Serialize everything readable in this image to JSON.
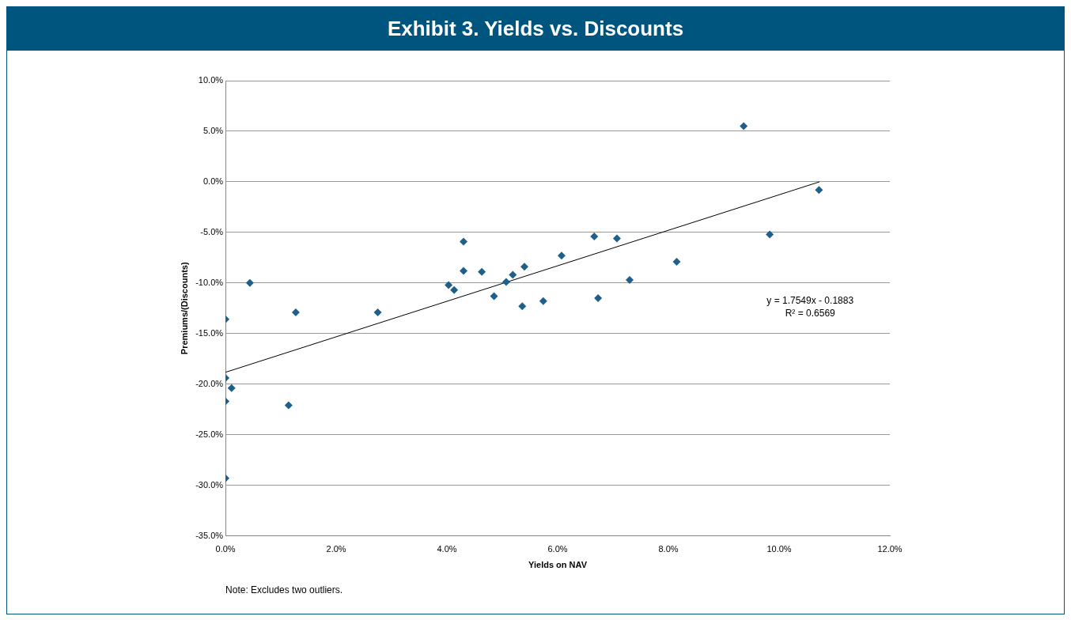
{
  "chart_data": {
    "type": "scatter",
    "title": "Exhibit 3. Yields vs. Discounts",
    "xlabel": "Yields on NAV",
    "ylabel": "Premiums/(Discounts)",
    "xlim": [
      0,
      12
    ],
    "ylim": [
      -35,
      10
    ],
    "xticks": [
      {
        "value": 0,
        "label": "0.0%"
      },
      {
        "value": 2,
        "label": "2.0%"
      },
      {
        "value": 4,
        "label": "4.0%"
      },
      {
        "value": 6,
        "label": "6.0%"
      },
      {
        "value": 8,
        "label": "8.0%"
      },
      {
        "value": 10,
        "label": "10.0%"
      },
      {
        "value": 12,
        "label": "12.0%"
      }
    ],
    "yticks": [
      {
        "value": -35,
        "label": "-35.0%"
      },
      {
        "value": -30,
        "label": "-30.0%"
      },
      {
        "value": -25,
        "label": "-25.0%"
      },
      {
        "value": -20,
        "label": "-20.0%"
      },
      {
        "value": -15,
        "label": "-15.0%"
      },
      {
        "value": -10,
        "label": "-10.0%"
      },
      {
        "value": -5,
        "label": "-5.0%"
      },
      {
        "value": 0,
        "label": "0.0%"
      },
      {
        "value": 5,
        "label": "5.0%"
      },
      {
        "value": 10,
        "label": "10.0%"
      }
    ],
    "grid": "y",
    "legend": false,
    "marker": "diamond",
    "series": [
      {
        "color": "#1f5f8b",
        "x": [
          0,
          0,
          0.11,
          0,
          0,
          0.44,
          1.14,
          1.27,
          2.75,
          4.03,
          4.13,
          4.3,
          4.3,
          4.63,
          4.85,
          5.07,
          5.19,
          5.36,
          5.4,
          5.74,
          6.07,
          6.66,
          6.73,
          7.07,
          7.3,
          8.15,
          9.36,
          9.83,
          10.72
        ],
        "values": [
          -13.6,
          -19.4,
          -20.4,
          -21.7,
          -29.3,
          -10,
          -22.1,
          -12.9,
          -12.9,
          -10.2,
          -10.7,
          -5.9,
          -8.8,
          -8.9,
          -11.3,
          -9.9,
          -9.2,
          -12.3,
          -8.4,
          -11.8,
          -7.3,
          -5.4,
          -11.5,
          -5.6,
          -9.7,
          -7.9,
          5.5,
          -5.2,
          -0.8
        ]
      },
      {
        "type": "line",
        "color": "#000000",
        "marker": "none",
        "x": [
          0,
          10.73
        ],
        "values": [
          -18.83,
          0
        ]
      }
    ],
    "annotations": [
      "y = 1.7549x - 0.1883\nR² = 0.6569",
      "Note: Excludes two outliers."
    ]
  }
}
